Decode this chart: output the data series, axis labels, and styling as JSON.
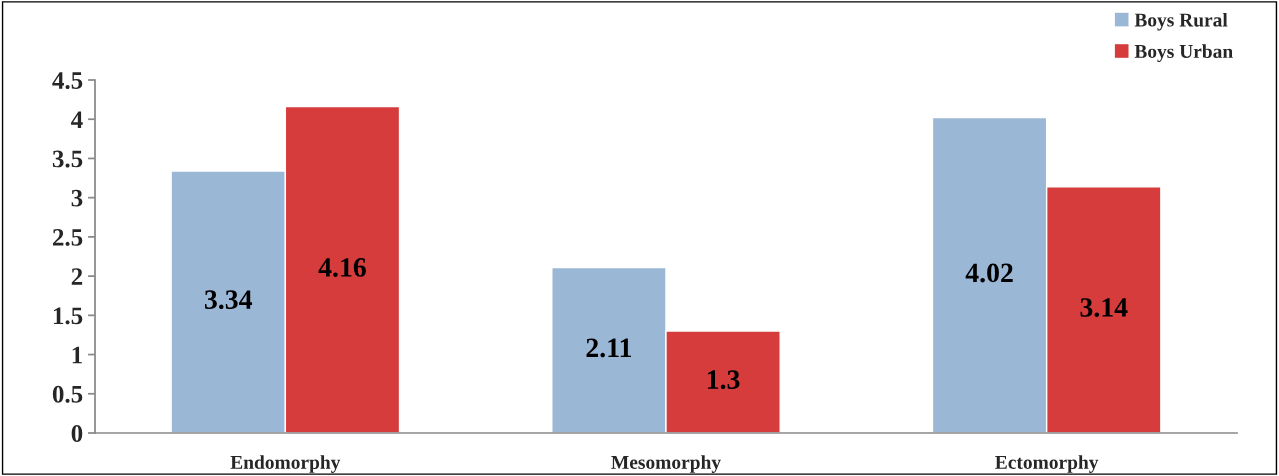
{
  "chart_data": {
    "type": "bar",
    "categories": [
      "Endomorphy",
      "Mesomorphy",
      "Ectomorphy"
    ],
    "series": [
      {
        "name": "Boys Rural",
        "color": "#9bb7d6",
        "values": [
          3.34,
          2.11,
          4.02
        ]
      },
      {
        "name": "Boys Urban",
        "color": "#d63c3c",
        "values": [
          4.16,
          1.3,
          3.14
        ]
      }
    ],
    "ylim": [
      0,
      4.5
    ],
    "yticks": [
      0,
      0.5,
      1,
      1.5,
      2,
      2.5,
      3,
      3.5,
      4,
      4.5
    ],
    "data_labels": true,
    "grid": false,
    "legend": "top right"
  }
}
